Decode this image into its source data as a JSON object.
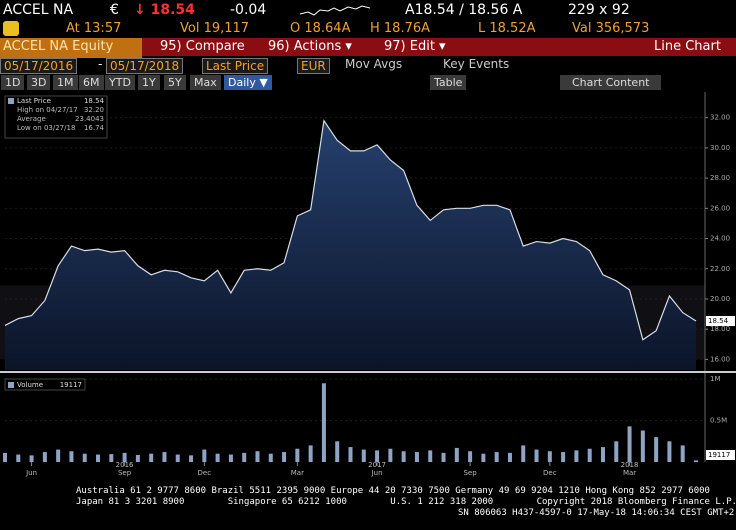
{
  "quote": {
    "ticker": "ACCEL NA",
    "currency": "€",
    "last": "↓ 18.54",
    "change": "-0.04",
    "bid_ask": "A18.54 / 18.56 A",
    "size": "229 x 92",
    "time": "At 13:57",
    "volume": "Vol 19,117",
    "open": "O 18.64A",
    "high": "H 18.76A",
    "low": "L 18.52A",
    "value": "Val 356,573"
  },
  "toolbar": {
    "security": "ACCEL NA Equity",
    "compare": "95) Compare",
    "actions": "96) Actions ▾",
    "edit": "97) Edit ▾",
    "chart_type": "Line Chart"
  },
  "controls": {
    "start": "05/17/2016",
    "dash": "-",
    "end": "05/17/2018",
    "field": "Last Price",
    "currency": "EUR",
    "mov_avgs": "Mov Avgs",
    "key_events": "Key Events"
  },
  "periods": [
    "1D",
    "3D",
    "1M",
    "6M",
    "YTD",
    "1Y",
    "5Y",
    "Max"
  ],
  "frequency": "Daily ▼",
  "table": "Table",
  "chart_content": "Chart Content",
  "chart_data": {
    "type": "line",
    "categories": [
      null,
      null,
      "Jun",
      null,
      null,
      null,
      null,
      null,
      null,
      "Sep",
      null,
      null,
      null,
      null,
      null,
      "Dec",
      null,
      null,
      null,
      null,
      null,
      null,
      "Mar",
      null,
      null,
      null,
      null,
      null,
      "Jun",
      null,
      null,
      null,
      null,
      null,
      null,
      "Sep",
      null,
      null,
      null,
      null,
      null,
      "Dec",
      null,
      null,
      null,
      null,
      null,
      "Mar",
      null,
      null,
      null,
      null,
      null
    ],
    "year_labels": [
      {
        "value": 9,
        "label": "2016"
      },
      {
        "value": 28,
        "label": "2017"
      },
      {
        "value": 47,
        "label": "2018"
      }
    ],
    "series": [
      {
        "name": "Last Price",
        "color": "#d8dde6",
        "values": [
          18.25,
          18.7,
          18.9,
          19.9,
          22.2,
          23.5,
          23.2,
          23.3,
          23.1,
          23.2,
          22.2,
          21.6,
          21.9,
          21.8,
          21.4,
          21.2,
          21.9,
          20.4,
          21.9,
          22.0,
          21.9,
          22.4,
          25.5,
          25.9,
          31.8,
          30.5,
          29.8,
          29.8,
          30.2,
          29.2,
          28.5,
          26.2,
          25.2,
          25.9,
          26.0,
          26.0,
          26.2,
          26.2,
          25.9,
          23.5,
          23.8,
          23.7,
          24.0,
          23.8,
          23.2,
          21.6,
          21.2,
          20.6,
          17.3,
          17.9,
          20.2,
          19.1,
          18.54
        ]
      },
      {
        "name": "Volume",
        "color": "#8fa3c4",
        "axis": "y2",
        "values": [
          110000,
          90000,
          80000,
          120000,
          150000,
          130000,
          100000,
          90000,
          95000,
          110000,
          85000,
          100000,
          120000,
          90000,
          80000,
          150000,
          100000,
          90000,
          110000,
          130000,
          100000,
          120000,
          160000,
          200000,
          950000,
          250000,
          180000,
          150000,
          140000,
          160000,
          130000,
          120000,
          140000,
          110000,
          170000,
          130000,
          100000,
          120000,
          110000,
          200000,
          150000,
          130000,
          120000,
          140000,
          160000,
          180000,
          250000,
          430000,
          380000,
          300000,
          250000,
          200000,
          19117
        ]
      }
    ],
    "stats": [
      {
        "label": "High on 04/27/17",
        "value": "32.20"
      },
      {
        "label": "Average",
        "value": "23.4043"
      },
      {
        "label": "Low on 03/27/18",
        "value": "16.74"
      }
    ],
    "ylim": [
      15.3,
      33.5
    ],
    "yticks": [
      {
        "value": 16,
        "label": "16.00"
      },
      {
        "value": 18,
        "label": "18.00"
      },
      {
        "value": 20,
        "label": "20.00"
      },
      {
        "value": 22,
        "label": "22.00"
      },
      {
        "value": 24,
        "label": "24.00"
      },
      {
        "value": 26,
        "label": "26.00"
      },
      {
        "value": 28,
        "label": "28.00"
      },
      {
        "value": 30,
        "label": "30.00"
      },
      {
        "value": 32,
        "label": "32.00"
      }
    ],
    "y2lim": [
      0,
      1050000
    ],
    "y2ticks": [
      {
        "value": 500000,
        "label": "0.5M"
      },
      {
        "value": 1000000,
        "label": "1M"
      }
    ],
    "grid": true
  },
  "footer": [
    "Australia 61 2 9777 8600 Brazil 5511 2395 9000 Europe 44 20 7330 7500 Germany 49 69 9204 1210 Hong Kong 852 2977 6000",
    "Japan 81 3 3201 8900        Singapore 65 6212 1000        U.S. 1 212 318 2000        Copyright 2018 Bloomberg Finance L.P.",
    "SN 806063 H437-4597-0 17-May-18 14:06:34 CEST GMT+2:00"
  ]
}
